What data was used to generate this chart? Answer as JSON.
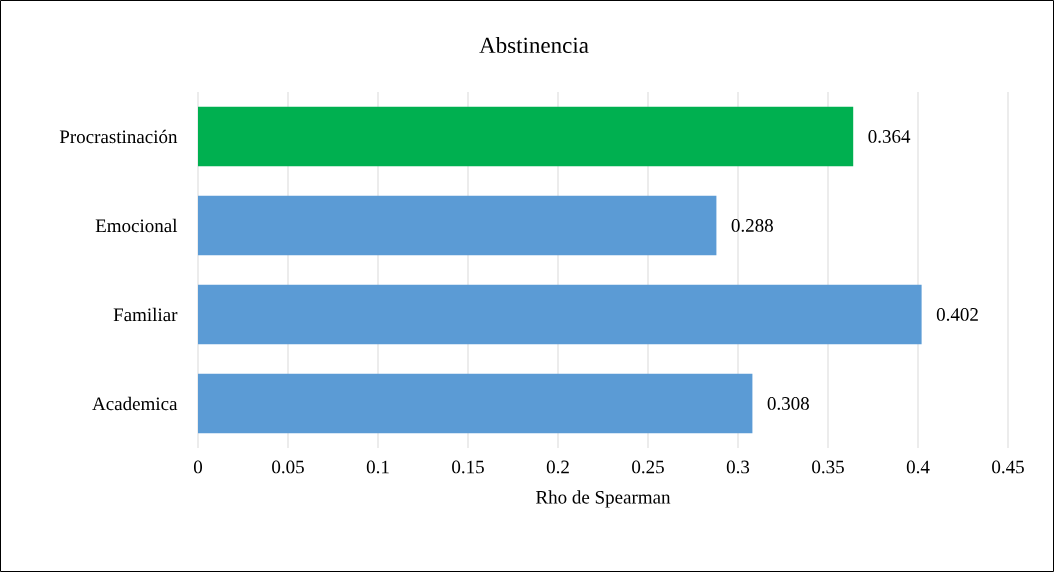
{
  "chart_data": {
    "type": "bar",
    "orientation": "horizontal",
    "title": "Abstinencia",
    "xlabel": "Rho de Spearman",
    "categories": [
      "Procrastinación",
      "Emocional",
      "Familiar",
      "Academica"
    ],
    "values": [
      0.364,
      0.288,
      0.402,
      0.308
    ],
    "colors": [
      "#00b050",
      "#5b9bd5",
      "#5b9bd5",
      "#5b9bd5"
    ],
    "xlim": [
      0,
      0.45
    ],
    "xticks": [
      0,
      0.05,
      0.1,
      0.15,
      0.2,
      0.25,
      0.3,
      0.35,
      0.4,
      0.45
    ],
    "grid": "x",
    "data_labels": true
  }
}
